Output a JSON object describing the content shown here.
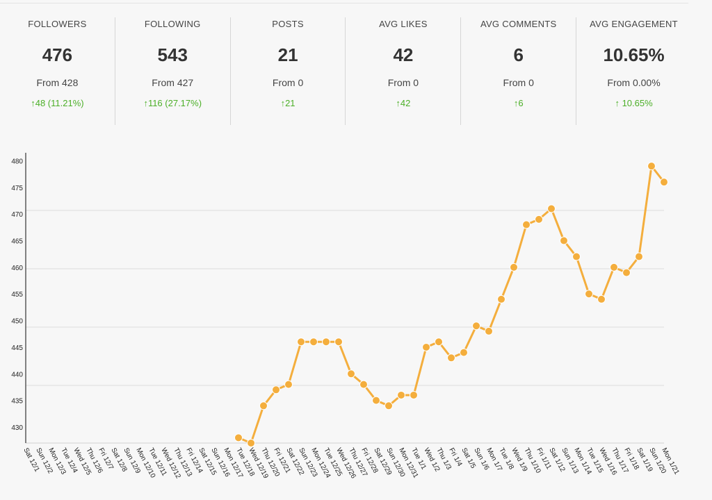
{
  "stats": [
    {
      "label": "FOLLOWERS",
      "value": "476",
      "from": "From 428",
      "change": "↑48 (11.21%)"
    },
    {
      "label": "FOLLOWING",
      "value": "543",
      "from": "From 427",
      "change": "↑116 (27.17%)"
    },
    {
      "label": "POSTS",
      "value": "21",
      "from": "From 0",
      "change": "↑21"
    },
    {
      "label": "AVG LIKES",
      "value": "42",
      "from": "From 0",
      "change": "↑42"
    },
    {
      "label": "AVG COMMENTS",
      "value": "6",
      "from": "From 0",
      "change": "↑6"
    },
    {
      "label": "AVG ENGAGEMENT",
      "value": "10.65%",
      "from": "From 0.00%",
      "change": "↑ 10.65%"
    }
  ],
  "colors": {
    "line": "#f4ae3d",
    "positive": "#4caf28"
  },
  "chart_data": {
    "type": "line",
    "title": "",
    "xlabel": "",
    "ylabel": "",
    "ylim": [
      427,
      481.5
    ],
    "yticks": [
      430,
      435,
      440,
      445,
      450,
      455,
      460,
      465,
      470,
      475,
      480
    ],
    "grid": true,
    "categories": [
      "Sat 12/1",
      "Sun 12/2",
      "Mon 12/3",
      "Tue 12/4",
      "Wed 12/5",
      "Thu 12/6",
      "Fri 12/7",
      "Sat 12/8",
      "Sun 12/9",
      "Mon 12/10",
      "Tue 12/11",
      "Wed 12/12",
      "Thu 12/13",
      "Fri 12/14",
      "Sat 12/15",
      "Sun 12/16",
      "Mon 12/17",
      "Tue 12/18",
      "Wed 12/19",
      "Thu 12/20",
      "Fri 12/21",
      "Sat 12/22",
      "Sun 12/23",
      "Mon 12/24",
      "Tue 12/25",
      "Wed 12/26",
      "Thu 12/27",
      "Fri 12/28",
      "Sat 12/29",
      "Sun 12/30",
      "Mon 12/31",
      "Tue 1/1",
      "Wed 1/2",
      "Thu 1/3",
      "Fri 1/4",
      "Sat 1/5",
      "Sun 1/6",
      "Mon 1/7",
      "Tue 1/8",
      "Wed 1/9",
      "Thu 1/10",
      "Fri 1/11",
      "Sat 1/12",
      "Sun 1/13",
      "Mon 1/14",
      "Tue 1/15",
      "Wed 1/16",
      "Thu 1/17",
      "Fri 1/18",
      "Sat 1/19",
      "Sun 1/20",
      "Mon 1/21"
    ],
    "values": [
      null,
      null,
      null,
      null,
      null,
      null,
      null,
      null,
      null,
      null,
      null,
      null,
      null,
      null,
      null,
      null,
      null,
      428,
      427,
      434,
      437,
      438,
      446,
      446,
      446,
      446,
      440,
      438,
      435,
      434,
      436,
      436,
      445,
      446,
      443,
      444,
      449,
      448,
      454,
      460,
      468,
      469,
      471,
      465,
      462,
      455,
      454,
      460,
      459,
      462,
      479,
      476
    ]
  }
}
